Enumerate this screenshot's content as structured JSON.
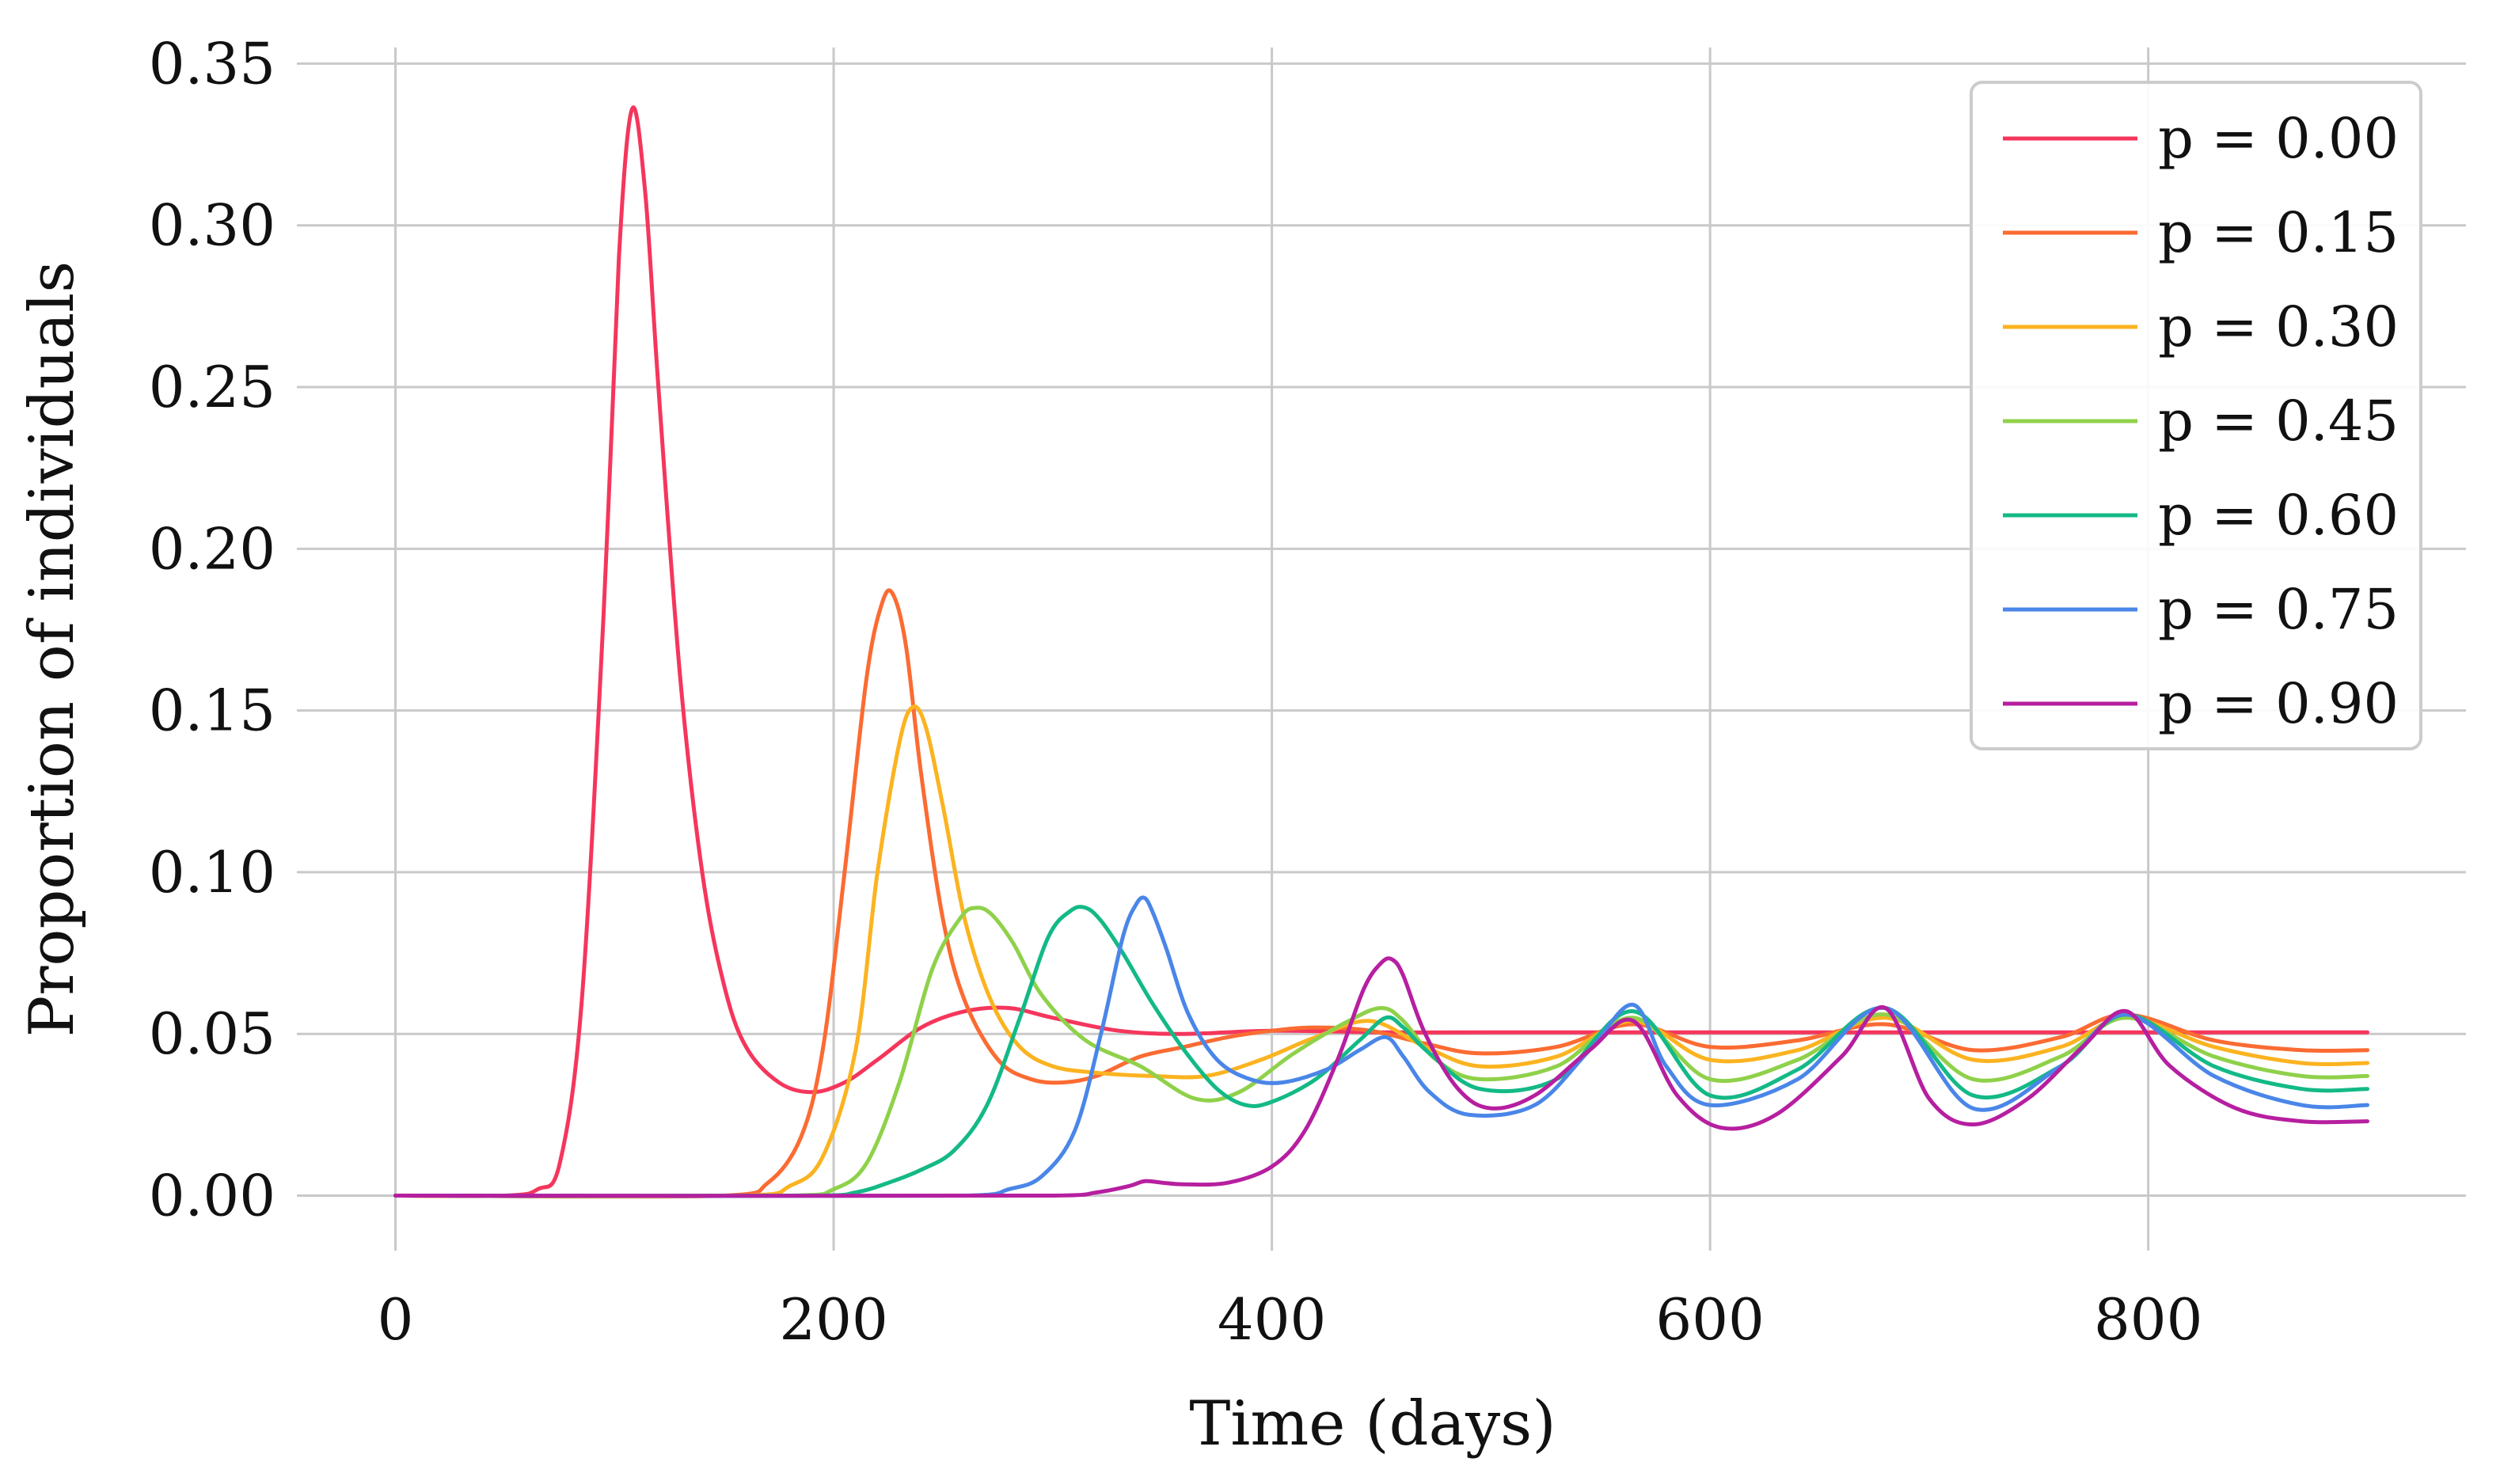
{
  "chart_data": {
    "type": "line",
    "xlabel": "Time (days)",
    "ylabel": "Proportion of individuals",
    "xlim": [
      -45,
      945
    ],
    "ylim": [
      -0.017,
      0.355
    ],
    "xticks": [
      0,
      200,
      400,
      600,
      800
    ],
    "xtick_labels": [
      "0",
      "200",
      "400",
      "600",
      "800"
    ],
    "yticks": [
      0.0,
      0.05,
      0.1,
      0.15,
      0.2,
      0.25,
      0.3,
      0.35
    ],
    "ytick_labels": [
      "0.00",
      "0.05",
      "0.10",
      "0.15",
      "0.20",
      "0.25",
      "0.30",
      "0.35"
    ],
    "grid": true,
    "legend_position": "top-right",
    "series": [
      {
        "name": "p = 0.00",
        "color": "#f5365c",
        "x": [
          0,
          50,
          65,
          75,
          85,
          95,
          102,
          108,
          114,
          120,
          130,
          140,
          150,
          160,
          175,
          190,
          205,
          220,
          240,
          260,
          280,
          300,
          330,
          360,
          400,
          450,
          500,
          600,
          700,
          800,
          900
        ],
        "y": [
          0.0,
          0.0,
          0.002,
          0.01,
          0.06,
          0.18,
          0.29,
          0.336,
          0.31,
          0.25,
          0.16,
          0.1,
          0.065,
          0.046,
          0.035,
          0.032,
          0.035,
          0.042,
          0.052,
          0.057,
          0.058,
          0.055,
          0.051,
          0.05,
          0.051,
          0.0505,
          0.0505,
          0.0505,
          0.0505,
          0.0505,
          0.0505
        ]
      },
      {
        "name": "p = 0.15",
        "color": "#fb6b32",
        "x": [
          0,
          150,
          170,
          185,
          195,
          205,
          215,
          222,
          227,
          233,
          240,
          250,
          260,
          275,
          290,
          305,
          320,
          340,
          360,
          380,
          400,
          420,
          445,
          470,
          495,
          530,
          565,
          600,
          640,
          680,
          720,
          760,
          790,
          830,
          870,
          900
        ],
        "y": [
          0.0,
          0.0,
          0.004,
          0.018,
          0.045,
          0.1,
          0.16,
          0.183,
          0.186,
          0.17,
          0.13,
          0.085,
          0.06,
          0.042,
          0.036,
          0.035,
          0.037,
          0.043,
          0.046,
          0.049,
          0.051,
          0.052,
          0.051,
          0.047,
          0.044,
          0.046,
          0.053,
          0.046,
          0.048,
          0.053,
          0.045,
          0.049,
          0.056,
          0.048,
          0.045,
          0.045
        ]
      },
      {
        "name": "p = 0.30",
        "color": "#fbb320",
        "x": [
          0,
          160,
          180,
          195,
          210,
          220,
          230,
          236,
          242,
          250,
          260,
          272,
          285,
          300,
          320,
          345,
          370,
          395,
          420,
          445,
          470,
          495,
          530,
          565,
          600,
          640,
          680,
          720,
          760,
          790,
          830,
          870,
          900
        ],
        "y": [
          0.0,
          0.0,
          0.003,
          0.012,
          0.045,
          0.1,
          0.14,
          0.151,
          0.145,
          0.12,
          0.085,
          0.06,
          0.046,
          0.04,
          0.038,
          0.037,
          0.037,
          0.042,
          0.049,
          0.054,
          0.046,
          0.04,
          0.043,
          0.054,
          0.042,
          0.045,
          0.055,
          0.042,
          0.046,
          0.055,
          0.046,
          0.041,
          0.041
        ]
      },
      {
        "name": "p = 0.45",
        "color": "#8fd14a",
        "x": [
          0,
          180,
          200,
          215,
          230,
          245,
          258,
          265,
          272,
          282,
          295,
          315,
          340,
          365,
          385,
          410,
          435,
          450,
          460,
          475,
          495,
          530,
          565,
          600,
          640,
          680,
          720,
          760,
          790,
          830,
          870,
          900
        ],
        "y": [
          0.0,
          0.0,
          0.002,
          0.01,
          0.035,
          0.07,
          0.086,
          0.089,
          0.087,
          0.078,
          0.062,
          0.048,
          0.04,
          0.03,
          0.032,
          0.044,
          0.054,
          0.058,
          0.054,
          0.042,
          0.036,
          0.04,
          0.055,
          0.036,
          0.042,
          0.056,
          0.036,
          0.043,
          0.055,
          0.043,
          0.037,
          0.037
        ]
      },
      {
        "name": "p = 0.60",
        "color": "#13b986",
        "x": [
          0,
          190,
          210,
          225,
          240,
          255,
          270,
          285,
          298,
          308,
          315,
          322,
          332,
          345,
          360,
          375,
          388,
          400,
          420,
          440,
          452,
          460,
          472,
          495,
          530,
          565,
          600,
          640,
          680,
          720,
          760,
          790,
          830,
          870,
          900
        ],
        "y": [
          0.0,
          0.0,
          0.001,
          0.004,
          0.008,
          0.014,
          0.028,
          0.055,
          0.08,
          0.088,
          0.089,
          0.085,
          0.075,
          0.06,
          0.045,
          0.033,
          0.028,
          0.029,
          0.036,
          0.048,
          0.055,
          0.052,
          0.044,
          0.033,
          0.036,
          0.057,
          0.031,
          0.039,
          0.058,
          0.031,
          0.04,
          0.056,
          0.04,
          0.033,
          0.033
        ]
      },
      {
        "name": "p = 0.75",
        "color": "#4a86e8",
        "x": [
          0,
          260,
          280,
          295,
          310,
          322,
          332,
          338,
          342,
          346,
          352,
          362,
          375,
          390,
          405,
          425,
          440,
          452,
          460,
          472,
          490,
          520,
          545,
          565,
          580,
          600,
          640,
          680,
          720,
          760,
          790,
          830,
          870,
          900
        ],
        "y": [
          0.0,
          0.0,
          0.002,
          0.006,
          0.02,
          0.05,
          0.08,
          0.09,
          0.092,
          0.087,
          0.076,
          0.056,
          0.042,
          0.036,
          0.035,
          0.039,
          0.045,
          0.049,
          0.043,
          0.032,
          0.025,
          0.028,
          0.045,
          0.059,
          0.04,
          0.028,
          0.036,
          0.058,
          0.027,
          0.04,
          0.056,
          0.037,
          0.028,
          0.028
        ]
      },
      {
        "name": "p = 0.90",
        "color": "#b61fa0",
        "x": [
          0,
          300,
          320,
          335,
          342,
          350,
          360,
          380,
          400,
          415,
          430,
          442,
          450,
          455,
          460,
          470,
          485,
          500,
          520,
          545,
          565,
          585,
          605,
          630,
          660,
          680,
          700,
          720,
          745,
          770,
          790,
          810,
          840,
          870,
          900
        ],
        "y": [
          0.0,
          0.0,
          0.001,
          0.003,
          0.0045,
          0.004,
          0.0035,
          0.004,
          0.009,
          0.02,
          0.042,
          0.064,
          0.072,
          0.073,
          0.068,
          0.05,
          0.033,
          0.027,
          0.031,
          0.045,
          0.054,
          0.031,
          0.021,
          0.025,
          0.043,
          0.058,
          0.03,
          0.022,
          0.03,
          0.046,
          0.057,
          0.04,
          0.027,
          0.023,
          0.023
        ]
      }
    ]
  }
}
